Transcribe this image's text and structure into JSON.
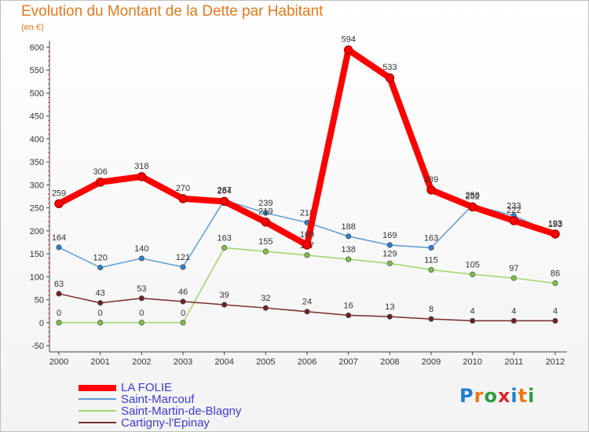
{
  "title": "Evolution du Montant de la Dette par Habitant",
  "subtitle": "(en €)",
  "logo": {
    "text": "Proxiti",
    "colors": [
      "#1c7fd4",
      "#e8791a",
      "#2a9d3b",
      "#d6262a",
      "#1c7fd4",
      "#e8791a",
      "#2a9d3b"
    ]
  },
  "chart_data": {
    "type": "line",
    "x": [
      "2000",
      "2001",
      "2002",
      "2003",
      "2004",
      "2005",
      "2006",
      "2007",
      "2008",
      "2009",
      "2010",
      "2011",
      "2012"
    ],
    "ylim": [
      -50,
      600
    ],
    "yticks": [
      "-50",
      "0",
      "50",
      "100",
      "150",
      "200",
      "250",
      "300",
      "350",
      "400",
      "450",
      "500",
      "550",
      "600"
    ],
    "grid": false,
    "legend_position": "bottom-left",
    "series": [
      {
        "name": "Saint-Marcouf",
        "color": "#5b9bd5",
        "marker": "#2a7fcf",
        "values": [
          164,
          120,
          140,
          121,
          267,
          239,
          218,
          188,
          169,
          163,
          256,
          233,
          193
        ],
        "labels": [
          "164",
          "120",
          "140",
          "121",
          "267",
          "239",
          "218",
          "188",
          "169",
          "163",
          "256",
          "233",
          "193"
        ]
      },
      {
        "name": "Saint-Martin-de-Blagny",
        "color": "#9dd66a",
        "marker": "#7fc241",
        "values": [
          0,
          0,
          0,
          0,
          163,
          155,
          147,
          138,
          129,
          115,
          105,
          97,
          86
        ],
        "labels": [
          "0",
          "0",
          "0",
          "0",
          "163",
          "155",
          "147",
          "138",
          "129",
          "115",
          "105",
          "97",
          "86"
        ]
      },
      {
        "name": "Cartigny-l'Epinay",
        "color": "#7a2b2b",
        "marker": "#6e1f1f",
        "values": [
          63,
          43,
          53,
          46,
          39,
          32,
          24,
          16,
          13,
          8,
          4,
          4,
          4
        ],
        "labels": [
          "63",
          "43",
          "53",
          "46",
          "39",
          "32",
          "24",
          "16",
          "13",
          "8",
          "4",
          "4",
          "4"
        ]
      },
      {
        "name": "LA FOLIE",
        "color": "#ff0000",
        "marker": "#ff0000",
        "values": [
          259,
          306,
          318,
          270,
          264,
          219,
          169,
          594,
          533,
          289,
          252,
          222,
          193
        ],
        "labels": [
          "259",
          "306",
          "318",
          "270",
          "264",
          "219",
          "169",
          "594",
          "533",
          "289",
          "252",
          "222",
          "193"
        ]
      }
    ],
    "legend": [
      "LA FOLIE",
      "Saint-Marcouf",
      "Saint-Martin-de-Blagny",
      "Cartigny-l'Epinay"
    ]
  }
}
